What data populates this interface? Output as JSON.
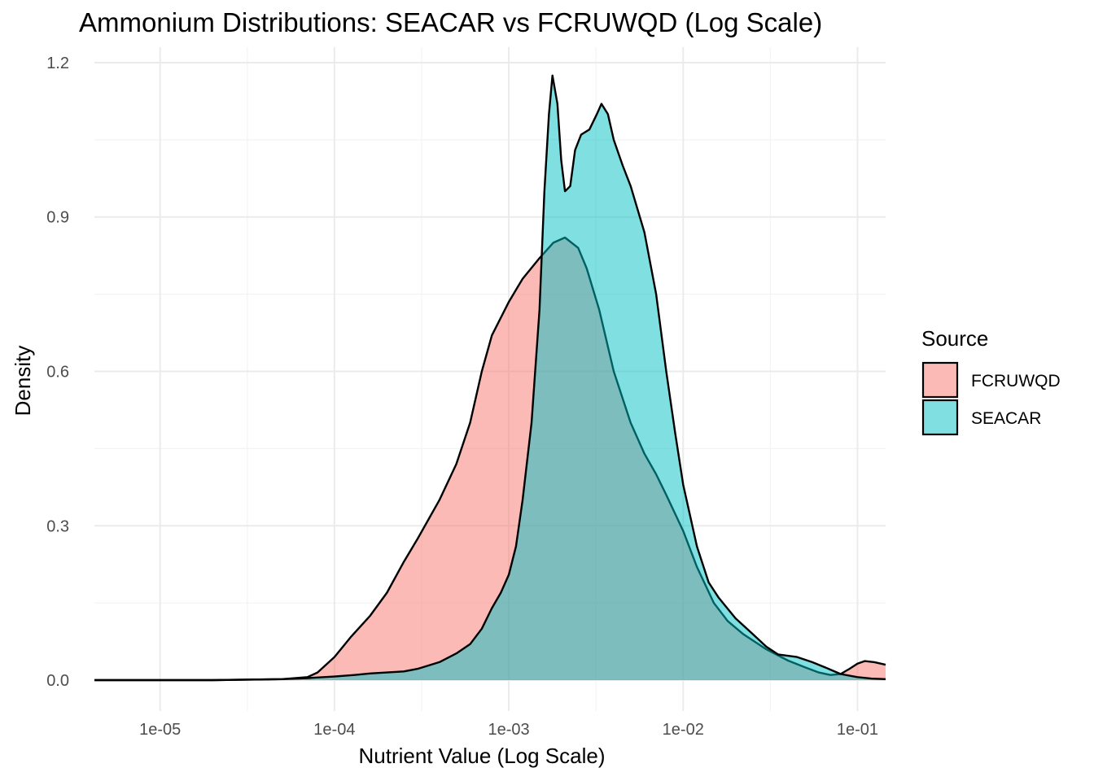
{
  "chart_data": {
    "type": "area",
    "title": "Ammonium Distributions: SEACAR vs FCRUWQD (Log Scale)",
    "xlabel": "Nutrient Value (Log Scale)",
    "ylabel": "Density",
    "x_scale": "log10",
    "xlim": [
      4.2e-06,
      0.145
    ],
    "ylim": [
      -0.06,
      1.23
    ],
    "x_ticks": [
      1e-05,
      0.0001,
      0.001,
      0.01,
      0.1
    ],
    "x_tick_labels": [
      "1e-05",
      "1e-04",
      "1e-03",
      "1e-02",
      "1e-01"
    ],
    "y_ticks": [
      0,
      0.3,
      0.6,
      0.9,
      1.2
    ],
    "y_tick_labels": [
      "0.0",
      "0.3",
      "0.6",
      "0.9",
      "1.2"
    ],
    "grid": true,
    "legend": {
      "title": "Source",
      "position": "right"
    },
    "series": [
      {
        "name": "FCRUWQD",
        "color": "#F8766D",
        "points": [
          [
            4.2e-06,
            0
          ],
          [
            2e-05,
            0
          ],
          [
            5e-05,
            0.002
          ],
          [
            7e-05,
            0.006
          ],
          [
            8e-05,
            0.015
          ],
          [
            0.0001,
            0.045
          ],
          [
            0.000125,
            0.085
          ],
          [
            0.00016,
            0.125
          ],
          [
            0.0002,
            0.17
          ],
          [
            0.00025,
            0.23
          ],
          [
            0.0003,
            0.275
          ],
          [
            0.0004,
            0.35
          ],
          [
            0.0005,
            0.42
          ],
          [
            0.0006,
            0.5
          ],
          [
            0.0007,
            0.6
          ],
          [
            0.0008,
            0.67
          ],
          [
            0.001,
            0.735
          ],
          [
            0.0012,
            0.78
          ],
          [
            0.0015,
            0.82
          ],
          [
            0.0018,
            0.85
          ],
          [
            0.0021,
            0.86
          ],
          [
            0.0025,
            0.84
          ],
          [
            0.0028,
            0.8
          ],
          [
            0.0033,
            0.72
          ],
          [
            0.004,
            0.6
          ],
          [
            0.005,
            0.5
          ],
          [
            0.006,
            0.44
          ],
          [
            0.007,
            0.4
          ],
          [
            0.008,
            0.36
          ],
          [
            0.01,
            0.29
          ],
          [
            0.012,
            0.22
          ],
          [
            0.015,
            0.15
          ],
          [
            0.018,
            0.115
          ],
          [
            0.022,
            0.09
          ],
          [
            0.03,
            0.06
          ],
          [
            0.04,
            0.038
          ],
          [
            0.05,
            0.025
          ],
          [
            0.06,
            0.015
          ],
          [
            0.07,
            0.01
          ],
          [
            0.08,
            0.012
          ],
          [
            0.09,
            0.022
          ],
          [
            0.1,
            0.032
          ],
          [
            0.11,
            0.037
          ],
          [
            0.125,
            0.035
          ],
          [
            0.145,
            0.03
          ]
        ]
      },
      {
        "name": "SEACAR",
        "color": "#00BFC4",
        "points": [
          [
            4.2e-06,
            0
          ],
          [
            2e-05,
            0
          ],
          [
            5e-05,
            0.002
          ],
          [
            7e-05,
            0.004
          ],
          [
            0.0001,
            0.007
          ],
          [
            0.00013,
            0.01
          ],
          [
            0.00016,
            0.013
          ],
          [
            0.0002,
            0.015
          ],
          [
            0.00025,
            0.017
          ],
          [
            0.0003,
            0.022
          ],
          [
            0.0004,
            0.035
          ],
          [
            0.0005,
            0.052
          ],
          [
            0.0006,
            0.07
          ],
          [
            0.0007,
            0.1
          ],
          [
            0.0008,
            0.14
          ],
          [
            0.0009,
            0.17
          ],
          [
            0.001,
            0.205
          ],
          [
            0.0011,
            0.26
          ],
          [
            0.0012,
            0.35
          ],
          [
            0.00135,
            0.5
          ],
          [
            0.0015,
            0.72
          ],
          [
            0.0016,
            0.95
          ],
          [
            0.0017,
            1.1
          ],
          [
            0.00178,
            1.175
          ],
          [
            0.0019,
            1.12
          ],
          [
            0.002,
            1.01
          ],
          [
            0.0021,
            0.95
          ],
          [
            0.00225,
            0.96
          ],
          [
            0.0024,
            1.03
          ],
          [
            0.0026,
            1.06
          ],
          [
            0.0029,
            1.07
          ],
          [
            0.0032,
            1.1
          ],
          [
            0.0034,
            1.12
          ],
          [
            0.0037,
            1.1
          ],
          [
            0.004,
            1.05
          ],
          [
            0.0045,
            1.0
          ],
          [
            0.005,
            0.96
          ],
          [
            0.006,
            0.87
          ],
          [
            0.007,
            0.75
          ],
          [
            0.008,
            0.6
          ],
          [
            0.009,
            0.48
          ],
          [
            0.01,
            0.38
          ],
          [
            0.012,
            0.26
          ],
          [
            0.014,
            0.19
          ],
          [
            0.016,
            0.16
          ],
          [
            0.02,
            0.12
          ],
          [
            0.025,
            0.09
          ],
          [
            0.03,
            0.065
          ],
          [
            0.035,
            0.05
          ],
          [
            0.045,
            0.045
          ],
          [
            0.055,
            0.035
          ],
          [
            0.065,
            0.025
          ],
          [
            0.08,
            0.012
          ],
          [
            0.1,
            0.006
          ],
          [
            0.12,
            0.003
          ],
          [
            0.145,
            0.002
          ]
        ]
      }
    ]
  }
}
